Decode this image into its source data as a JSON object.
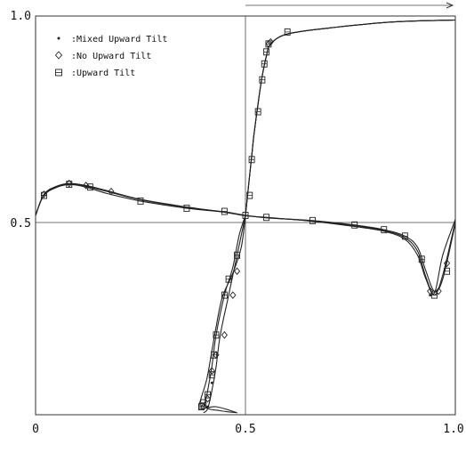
{
  "chart_data": {
    "type": "line",
    "title": "",
    "xlabel": "",
    "ylabel": "",
    "xlim": [
      0,
      1
    ],
    "ylim": [
      0,
      1
    ],
    "x_ticks": [
      "0",
      "0.5",
      "1.0"
    ],
    "y_ticks": [
      "0.5",
      "1.0"
    ],
    "reference_lines": {
      "x": 0.5,
      "y": 0.5
    },
    "legend_position": "top-left",
    "colors": {
      "ink": "#222222",
      "background": "#ffffff"
    },
    "series": [
      {
        "name": ":Mixed Upward Tilt",
        "marker": "dot",
        "horizontal_profile": {
          "x": [
            0.0,
            0.02,
            0.05,
            0.08,
            0.12,
            0.17,
            0.25,
            0.36,
            0.45,
            0.5,
            0.55,
            0.66,
            0.76,
            0.83,
            0.88,
            0.91,
            0.93,
            0.95,
            0.97,
            1.0
          ],
          "y": [
            0.5,
            0.552,
            0.571,
            0.579,
            0.573,
            0.56,
            0.539,
            0.52,
            0.509,
            0.5,
            0.494,
            0.486,
            0.474,
            0.462,
            0.444,
            0.41,
            0.345,
            0.3,
            0.35,
            0.485
          ]
        },
        "vertical_profile": {
          "x": [
            0.5,
            0.49,
            0.47,
            0.445,
            0.43,
            0.42,
            0.408,
            0.39,
            0.395,
            0.43,
            0.48,
            0.5,
            0.505,
            0.51,
            0.515,
            0.52,
            0.53,
            0.54,
            0.55,
            0.56,
            0.6,
            0.7,
            0.85,
            1.0
          ],
          "y": [
            0.5,
            0.42,
            0.355,
            0.295,
            0.22,
            0.16,
            0.09,
            0.025,
            0.015,
            0.02,
            0.005,
            0.5,
            0.55,
            0.6,
            0.65,
            0.7,
            0.78,
            0.85,
            0.9,
            0.93,
            0.955,
            0.97,
            0.985,
            0.99
          ]
        }
      },
      {
        "name": ":No Upward Tilt",
        "marker": "diamond",
        "horizontal_profile": {
          "x": [
            0.0,
            0.02,
            0.05,
            0.08,
            0.12,
            0.17,
            0.25,
            0.36,
            0.45,
            0.5,
            0.55,
            0.66,
            0.76,
            0.83,
            0.88,
            0.91,
            0.93,
            0.95,
            0.97,
            1.0
          ],
          "y": [
            0.5,
            0.553,
            0.573,
            0.58,
            0.575,
            0.562,
            0.54,
            0.521,
            0.508,
            0.499,
            0.495,
            0.485,
            0.472,
            0.46,
            0.44,
            0.4,
            0.34,
            0.305,
            0.4,
            0.49
          ]
        },
        "vertical_profile": {
          "x": [
            0.5,
            0.485,
            0.47,
            0.45,
            0.43,
            0.42,
            0.41,
            0.405,
            0.44,
            0.48,
            0.5,
            0.505,
            0.51,
            0.515,
            0.52,
            0.53,
            0.54,
            0.55,
            0.56,
            0.6,
            0.7,
            0.85,
            1.0
          ],
          "y": [
            0.5,
            0.45,
            0.37,
            0.3,
            0.2,
            0.12,
            0.06,
            0.02,
            0.01,
            0.005,
            0.5,
            0.55,
            0.6,
            0.65,
            0.7,
            0.78,
            0.85,
            0.9,
            0.93,
            0.955,
            0.97,
            0.985,
            0.99
          ]
        }
      },
      {
        "name": ":Upward Tilt",
        "marker": "square",
        "horizontal_profile": {
          "x": [
            0.0,
            0.02,
            0.05,
            0.08,
            0.12,
            0.17,
            0.25,
            0.36,
            0.45,
            0.5,
            0.55,
            0.66,
            0.76,
            0.83,
            0.88,
            0.91,
            0.93,
            0.95,
            0.97,
            1.0
          ],
          "y": [
            0.5,
            0.55,
            0.57,
            0.577,
            0.571,
            0.555,
            0.536,
            0.518,
            0.508,
            0.5,
            0.494,
            0.487,
            0.476,
            0.464,
            0.448,
            0.42,
            0.36,
            0.31,
            0.34,
            0.48
          ]
        },
        "vertical_profile": {
          "x": [
            0.5,
            0.48,
            0.46,
            0.44,
            0.43,
            0.42,
            0.41,
            0.4,
            0.5,
            0.505,
            0.51,
            0.515,
            0.52,
            0.53,
            0.54,
            0.55,
            0.56,
            0.6,
            0.7,
            0.85,
            1.0
          ],
          "y": [
            0.5,
            0.4,
            0.3,
            0.2,
            0.12,
            0.06,
            0.015,
            0.005,
            0.5,
            0.55,
            0.6,
            0.65,
            0.7,
            0.78,
            0.85,
            0.9,
            0.93,
            0.955,
            0.97,
            0.985,
            0.99
          ]
        }
      }
    ],
    "markers": {
      "dot": {
        "points": [
          [
            0.94,
            0.3
          ],
          [
            0.42,
            0.08
          ],
          [
            0.41,
            0.02
          ]
        ]
      },
      "diamond": {
        "points": [
          [
            0.02,
            0.553
          ],
          [
            0.08,
            0.58
          ],
          [
            0.12,
            0.575
          ],
          [
            0.18,
            0.56
          ],
          [
            0.94,
            0.31
          ],
          [
            0.96,
            0.31
          ],
          [
            0.98,
            0.38
          ],
          [
            0.48,
            0.36
          ],
          [
            0.47,
            0.3
          ],
          [
            0.45,
            0.2
          ],
          [
            0.43,
            0.15
          ],
          [
            0.42,
            0.11
          ],
          [
            0.41,
            0.04
          ],
          [
            0.4,
            0.02
          ],
          [
            0.555,
            0.93
          ],
          [
            0.56,
            0.935
          ]
        ]
      },
      "square": {
        "points": [
          [
            0.02,
            0.55
          ],
          [
            0.08,
            0.578
          ],
          [
            0.13,
            0.571
          ],
          [
            0.25,
            0.536
          ],
          [
            0.36,
            0.518
          ],
          [
            0.45,
            0.51
          ],
          [
            0.55,
            0.495
          ],
          [
            0.66,
            0.487
          ],
          [
            0.76,
            0.476
          ],
          [
            0.83,
            0.464
          ],
          [
            0.88,
            0.448
          ],
          [
            0.92,
            0.39
          ],
          [
            0.95,
            0.3
          ],
          [
            0.98,
            0.36
          ],
          [
            0.5,
            0.5
          ],
          [
            0.51,
            0.55
          ],
          [
            0.515,
            0.64
          ],
          [
            0.53,
            0.76
          ],
          [
            0.54,
            0.84
          ],
          [
            0.545,
            0.88
          ],
          [
            0.55,
            0.91
          ],
          [
            0.555,
            0.93
          ],
          [
            0.6,
            0.96
          ],
          [
            0.48,
            0.4
          ],
          [
            0.46,
            0.34
          ],
          [
            0.45,
            0.3
          ],
          [
            0.43,
            0.2
          ],
          [
            0.425,
            0.15
          ],
          [
            0.42,
            0.1
          ],
          [
            0.41,
            0.05
          ],
          [
            0.4,
            0.03
          ],
          [
            0.395,
            0.02
          ]
        ]
      }
    }
  }
}
